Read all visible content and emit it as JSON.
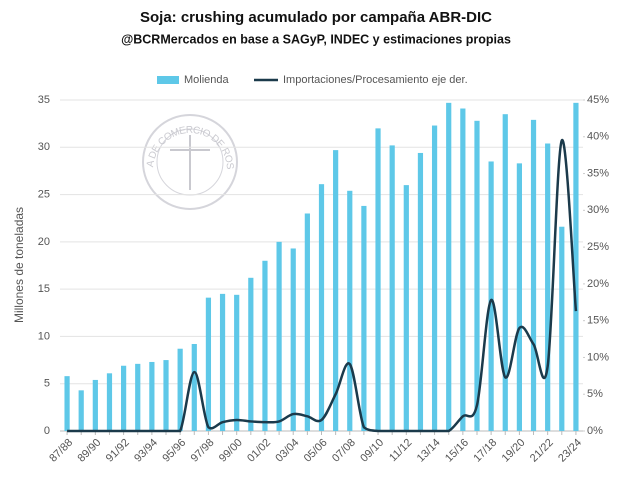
{
  "chart_data": {
    "type": "bar_line",
    "title": "Soja: crushing acumulado por campaña ABR-DIC",
    "subtitle": "@BCRMercados en base a SAGyP, INDEC y estimaciones propias",
    "y_label": "Millones de toneladas",
    "watermark": "BOLSA DE COMERCIO DE ROSARIO",
    "categories": [
      "87/88",
      null,
      "89/90",
      null,
      "91/92",
      null,
      "93/94",
      null,
      "95/96",
      null,
      "97/98",
      null,
      "99/00",
      null,
      "01/02",
      null,
      "03/04",
      null,
      "05/06",
      null,
      "07/08",
      null,
      "09/10",
      null,
      "11/12",
      null,
      "13/14",
      null,
      "15/16",
      null,
      "17/18",
      null,
      "19/20",
      null,
      "21/22",
      null,
      "23/24"
    ],
    "series": [
      {
        "name": "Molienda",
        "color": "#5ec8e8",
        "values": [
          5.8,
          4.3,
          5.4,
          6.1,
          6.9,
          7.1,
          7.3,
          7.5,
          8.7,
          9.2,
          14.1,
          14.5,
          14.4,
          16.2,
          18.0,
          20.0,
          19.3,
          23.0,
          26.1,
          29.7,
          25.4,
          23.8,
          32.0,
          30.2,
          26.0,
          29.4,
          32.3,
          34.7,
          34.1,
          32.8,
          28.5,
          33.5,
          28.3,
          32.9,
          30.4,
          21.6,
          34.7
        ]
      },
      {
        "name": "Importaciones/Procesamiento eje der.",
        "color": "#1b3a4b",
        "axis": "y2",
        "values": [
          0,
          0,
          0,
          0,
          0,
          0,
          0,
          0,
          0,
          8,
          0.5,
          1.2,
          1.5,
          1.3,
          1.2,
          1.3,
          2.3,
          2.0,
          1.5,
          5,
          9.1,
          0.5,
          0,
          0,
          0,
          0,
          0,
          0,
          2,
          3.5,
          17.8,
          7.3,
          14,
          11.8,
          8.8,
          39.5,
          16.3
        ]
      }
    ],
    "ylim": [
      0,
      35
    ],
    "yticks": [
      0,
      5,
      10,
      15,
      20,
      25,
      30,
      35
    ],
    "y2lim": [
      0,
      45
    ],
    "y2ticks": [
      {
        "value": 0,
        "label": "0%"
      },
      {
        "value": 5,
        "label": "5%"
      },
      {
        "value": 10,
        "label": "10%"
      },
      {
        "value": 15,
        "label": "15%"
      },
      {
        "value": 20,
        "label": "20%"
      },
      {
        "value": 25,
        "label": "25%"
      },
      {
        "value": 30,
        "label": "30%"
      },
      {
        "value": 35,
        "label": "35%"
      },
      {
        "value": 40,
        "label": "40%"
      },
      {
        "value": 45,
        "label": "45%"
      }
    ],
    "grid": true,
    "legend": "top"
  }
}
